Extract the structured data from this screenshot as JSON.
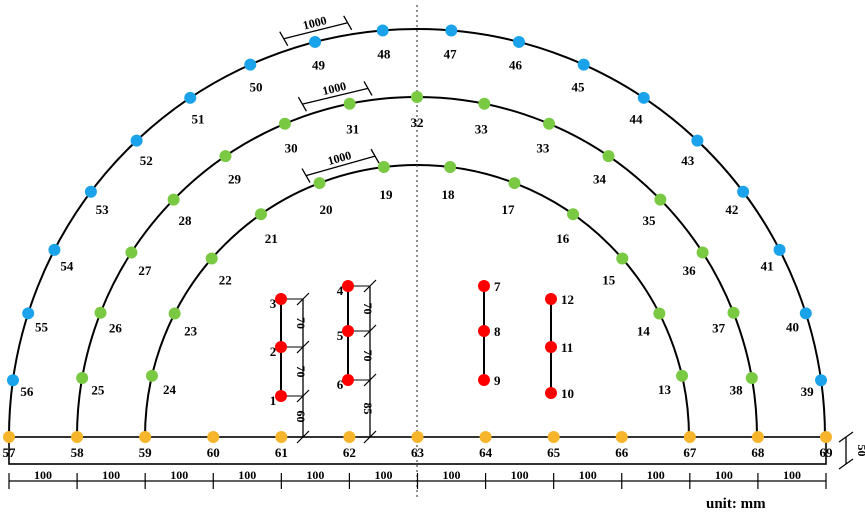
{
  "colors": {
    "outer_ring": "#1aa3ea",
    "middle_ring": "#7ac943",
    "inner_ring": "#7ac943",
    "base_row": "#f7b52c",
    "interior": "#ff0000",
    "line": "#000000",
    "center_line": "#555555"
  },
  "outer_ring": [
    "39",
    "40",
    "41",
    "42",
    "43",
    "44",
    "45",
    "46",
    "47",
    "48",
    "49",
    "50",
    "51",
    "52",
    "53",
    "54",
    "55",
    "56"
  ],
  "middle_ring": [
    "38",
    "37",
    "36",
    "35",
    "34",
    "33",
    "33",
    "32",
    "31",
    "30",
    "29",
    "28",
    "27",
    "26",
    "25"
  ],
  "inner_ring": [
    "13",
    "14",
    "15",
    "16",
    "17",
    "18",
    "19",
    "20",
    "21",
    "22",
    "23",
    "24"
  ],
  "base_row": [
    "57",
    "58",
    "59",
    "60",
    "61",
    "62",
    "63",
    "64",
    "65",
    "66",
    "67",
    "68",
    "69"
  ],
  "interior_columns": [
    {
      "points": [
        "3",
        "2",
        "1"
      ],
      "dims": [
        "70",
        "70",
        "60"
      ]
    },
    {
      "points": [
        "4",
        "5",
        "6"
      ],
      "dims": [
        "70",
        "70",
        "85"
      ]
    },
    {
      "points": [
        "7",
        "8",
        "9"
      ],
      "dims": []
    },
    {
      "points": [
        "12",
        "11",
        "10"
      ],
      "dims": []
    }
  ],
  "arc_spacing_labels": [
    "1000",
    "1000",
    "1000"
  ],
  "base_segment_labels": [
    "100",
    "100",
    "100",
    "100",
    "100",
    "100",
    "100",
    "100",
    "100",
    "100",
    "100",
    "100"
  ],
  "base_height_label": "50",
  "unit_label": "unit: mm"
}
